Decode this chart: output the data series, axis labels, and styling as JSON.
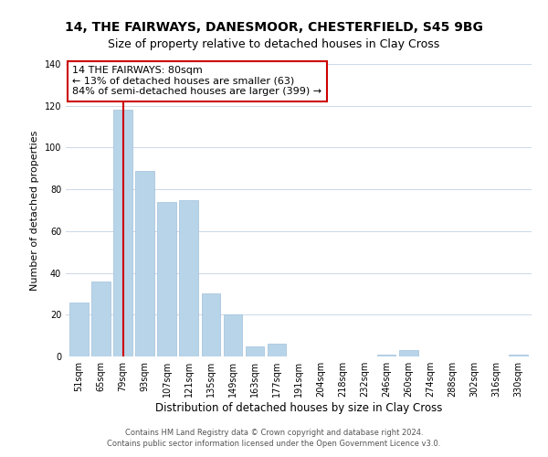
{
  "title": "14, THE FAIRWAYS, DANESMOOR, CHESTERFIELD, S45 9BG",
  "subtitle": "Size of property relative to detached houses in Clay Cross",
  "xlabel": "Distribution of detached houses by size in Clay Cross",
  "ylabel": "Number of detached properties",
  "categories": [
    "51sqm",
    "65sqm",
    "79sqm",
    "93sqm",
    "107sqm",
    "121sqm",
    "135sqm",
    "149sqm",
    "163sqm",
    "177sqm",
    "191sqm",
    "204sqm",
    "218sqm",
    "232sqm",
    "246sqm",
    "260sqm",
    "274sqm",
    "288sqm",
    "302sqm",
    "316sqm",
    "330sqm"
  ],
  "values": [
    26,
    36,
    118,
    89,
    74,
    75,
    30,
    20,
    5,
    6,
    0,
    0,
    0,
    0,
    1,
    3,
    0,
    0,
    0,
    0,
    1
  ],
  "bar_color": "#b8d4e8",
  "bar_edge_color": "#a0c0dc",
  "marker_color": "#cc0000",
  "marker_index": 2,
  "ylim": [
    0,
    140
  ],
  "yticks": [
    0,
    20,
    40,
    60,
    80,
    100,
    120,
    140
  ],
  "annotation_text": "14 THE FAIRWAYS: 80sqm\n← 13% of detached houses are smaller (63)\n84% of semi-detached houses are larger (399) →",
  "annotation_box_color": "#ffffff",
  "annotation_box_edge": "#cc0000",
  "footer1": "Contains HM Land Registry data © Crown copyright and database right 2024.",
  "footer2": "Contains public sector information licensed under the Open Government Licence v3.0.",
  "background_color": "#ffffff",
  "grid_color": "#ccd8e8",
  "title_fontsize": 10,
  "subtitle_fontsize": 9,
  "tick_fontsize": 7,
  "ylabel_fontsize": 8,
  "xlabel_fontsize": 8.5,
  "annotation_fontsize": 8,
  "footer_fontsize": 6
}
